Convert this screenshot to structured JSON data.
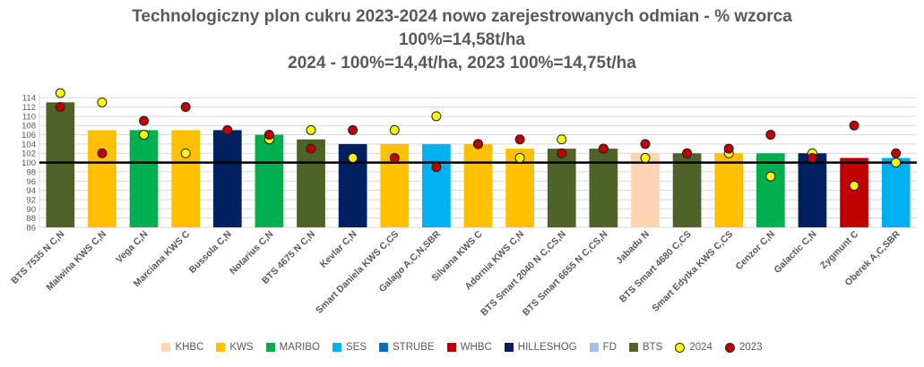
{
  "chart_data": {
    "type": "bar",
    "title_lines": [
      "Technologiczny plon cukru 2023-2024 nowo zarejestrowanych odmian - % wzorca",
      "100%=14,58t/ha",
      "2024 - 100%=14,4t/ha, 2023 100%=14,75t/ha"
    ],
    "ylim": [
      86,
      115
    ],
    "yticks": [
      86,
      88,
      90,
      92,
      94,
      96,
      98,
      100,
      102,
      104,
      106,
      108,
      110,
      112,
      114
    ],
    "reference_line": 100,
    "categories": [
      "BTS 7535 N C,N",
      "Malwina KWS C,N",
      "Vega C,N",
      "Marciana KWS C",
      "Bussola C,N",
      "Notarius C,N",
      "BTS 4675 N C,N",
      "Kevlar C,N",
      "Smart Daniela KWS C,CS",
      "Galago A,C,N,SBR",
      "Silvana KWS C",
      "Adornia KWS C,N",
      "BTS Smart 2040 N C,CS,N",
      "BTS Smart 6655 N C,CS,N",
      "Jabadu N",
      "BTS Smart 4680 C,CS",
      "Smart Edytka KWS C,CS",
      "Cenzor C,N",
      "Galactic C,N",
      "Zygmunt C",
      "Oberek A,C,SBR"
    ],
    "companies": [
      "BTS",
      "KWS",
      "MARIBO",
      "KWS",
      "HILLESHOG",
      "MARIBO",
      "BTS",
      "HILLESHOG",
      "KWS",
      "SES",
      "KWS",
      "KWS",
      "BTS",
      "BTS",
      "KHBC",
      "BTS",
      "KWS",
      "MARIBO",
      "HILLESHOG",
      "WHBC",
      "SES"
    ],
    "values": [
      113,
      107,
      107,
      107,
      107,
      106,
      105,
      104,
      104,
      104,
      104,
      103,
      103,
      103,
      102,
      102,
      102,
      102,
      102,
      101,
      101
    ],
    "series": [
      {
        "name": "2024",
        "color": "#FFFF00",
        "values": [
          115,
          113,
          106,
          102,
          107,
          105,
          107,
          101,
          107,
          110,
          104,
          101,
          105,
          103,
          101,
          102,
          102,
          97,
          102,
          95,
          100
        ]
      },
      {
        "name": "2023",
        "color": "#C00000",
        "values": [
          112,
          102,
          109,
          112,
          107,
          106,
          103,
          107,
          101,
          99,
          104,
          105,
          102,
          103,
          104,
          102,
          103,
          106,
          101,
          108,
          102
        ]
      }
    ],
    "legend": [
      {
        "name": "KHBC",
        "color": "#FBD4B4"
      },
      {
        "name": "KWS",
        "color": "#FFC000"
      },
      {
        "name": "MARIBO",
        "color": "#00B050"
      },
      {
        "name": "SES",
        "color": "#00B0F0"
      },
      {
        "name": "STRUBE",
        "color": "#0070C0"
      },
      {
        "name": "WHBC",
        "color": "#C00000"
      },
      {
        "name": "HILLESHOG",
        "color": "#002060"
      },
      {
        "name": "FD",
        "color": "#9DC3E6"
      },
      {
        "name": "BTS",
        "color": "#4F6228"
      }
    ],
    "legend_placement": "bottom",
    "grid": true
  }
}
